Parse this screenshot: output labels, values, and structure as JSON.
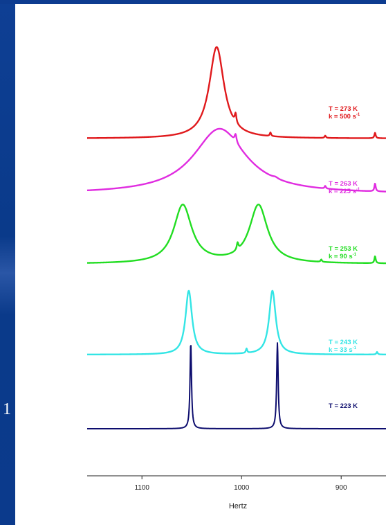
{
  "slide": {
    "page_number": "1"
  },
  "colors": {
    "background": "#0b3a8c",
    "panel": "#ffffff",
    "axis": "#222222"
  },
  "chart_data": {
    "type": "line",
    "title": "",
    "xlabel": "Hertz",
    "ylabel": "",
    "x_reversed": true,
    "xlim": [
      1155,
      855
    ],
    "xticks": [
      1100,
      1000,
      900
    ],
    "grid": false,
    "series": [
      {
        "label_lines": [
          "T = 273 K",
          "k = 500 s"
        ],
        "superscript": "-1",
        "color": "#e0191c",
        "peaks": [
          {
            "center": 1025,
            "hwhm": 9,
            "height": 1.0
          },
          {
            "center": 1006,
            "hwhm": 1,
            "height": 0.1
          },
          {
            "center": 971,
            "hwhm": 0.8,
            "height": 0.04
          },
          {
            "center": 916,
            "hwhm": 0.8,
            "height": 0.025
          },
          {
            "center": 866,
            "hwhm": 0.8,
            "height": 0.06
          }
        ]
      },
      {
        "label_lines": [
          "T = 263 K",
          "k = 225 s"
        ],
        "superscript": "-1",
        "color": "#e02ce0",
        "peaks": [
          {
            "center": 1022,
            "hwhm": 32,
            "height": 1.0
          },
          {
            "center": 1006,
            "hwhm": 1.2,
            "height": 0.12
          },
          {
            "center": 966,
            "hwhm": 3,
            "height": 0.02
          },
          {
            "center": 916,
            "hwhm": 0.8,
            "height": 0.04
          },
          {
            "center": 866,
            "hwhm": 0.8,
            "height": 0.12
          }
        ]
      },
      {
        "label_lines": [
          "T = 253 K",
          "k = 90 s"
        ],
        "superscript": "-1",
        "color": "#22dd22",
        "peaks": [
          {
            "center": 1059,
            "hwhm": 11,
            "height": 1.0
          },
          {
            "center": 983,
            "hwhm": 11,
            "height": 1.0
          },
          {
            "center": 1004,
            "hwhm": 1,
            "height": 0.12
          },
          {
            "center": 920,
            "hwhm": 0.8,
            "height": 0.04
          },
          {
            "center": 866,
            "hwhm": 0.8,
            "height": 0.12
          }
        ]
      },
      {
        "label_lines": [
          "T = 243 K",
          "k = 33 s"
        ],
        "superscript": "-1",
        "color": "#33e5e5",
        "peaks": [
          {
            "center": 1053,
            "hwhm": 4,
            "height": 1.0
          },
          {
            "center": 969,
            "hwhm": 4,
            "height": 1.0
          },
          {
            "center": 995,
            "hwhm": 0.8,
            "height": 0.07
          },
          {
            "center": 864,
            "hwhm": 0.8,
            "height": 0.04
          }
        ]
      },
      {
        "label_lines": [
          "T = 223 K"
        ],
        "superscript": "",
        "color": "#0d0d6e",
        "peaks": [
          {
            "center": 1051,
            "hwhm": 0.9,
            "height": 1.0
          },
          {
            "center": 964,
            "hwhm": 0.9,
            "height": 1.0
          }
        ]
      }
    ]
  }
}
